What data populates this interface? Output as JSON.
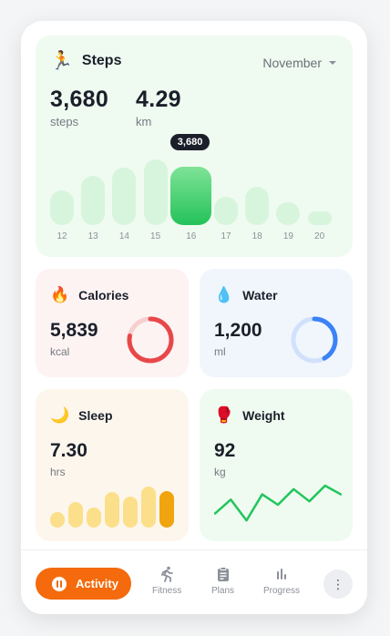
{
  "steps": {
    "title": "Steps",
    "icon": "running-person-icon",
    "month": "November",
    "steps_value": "3,680",
    "steps_unit": "steps",
    "km_value": "4.29",
    "km_unit": "km",
    "tooltip": "3,680",
    "days": [
      "12",
      "13",
      "14",
      "15",
      "16",
      "17",
      "18",
      "19",
      "20"
    ],
    "bar_levels": [
      0.6,
      0.84,
      0.98,
      1.12,
      1.0,
      0.48,
      0.66,
      0.39,
      0.24
    ],
    "active_index": 4
  },
  "calories": {
    "title": "Calories",
    "icon": "fire-icon",
    "value": "5,839",
    "unit": "kcal",
    "progress": 0.78,
    "color": "#e8474a",
    "track": "#f6d0cf"
  },
  "water": {
    "title": "Water",
    "icon": "water-drop-icon",
    "value": "1,200",
    "unit": "ml",
    "progress": 0.42,
    "color": "#3b82f6",
    "track": "#d2e1fb"
  },
  "sleep": {
    "title": "Sleep",
    "icon": "crescent-moon-icon",
    "value": "7.30",
    "unit": "hrs",
    "bar_levels": [
      0.34,
      0.56,
      0.45,
      0.79,
      0.68,
      0.9,
      0.8
    ],
    "active_index": 6
  },
  "weight": {
    "title": "Weight",
    "icon": "boxing-glove-icon",
    "value": "92",
    "unit": "kg",
    "trend": [
      0.3,
      0.7,
      0.1,
      0.85,
      0.55,
      1.0,
      0.65,
      1.1,
      0.85
    ]
  },
  "nav": {
    "activity": "Activity",
    "fitness": "Fitness",
    "plans": "Plans",
    "progress": "Progress",
    "more": "⋮"
  }
}
